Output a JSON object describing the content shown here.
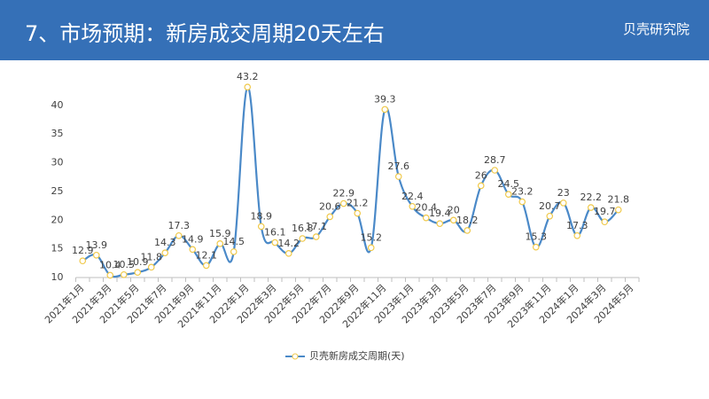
{
  "chart_data": {
    "type": "line",
    "title": "7、市场预期：新房成交周期20天左右",
    "brand": "贝壳研究院",
    "categories": [
      "2021年1月",
      null,
      "2021年3月",
      null,
      "2021年5月",
      null,
      "2021年7月",
      null,
      "2021年9月",
      null,
      "2021年11月",
      null,
      "2022年1月",
      null,
      "2022年3月",
      null,
      "2022年5月",
      null,
      "2022年7月",
      null,
      "2022年9月",
      null,
      "2022年11月",
      null,
      "2023年1月",
      null,
      "2023年3月",
      null,
      "2023年5月",
      null,
      "2023年7月",
      null,
      "2023年9月",
      null,
      "2023年11月",
      null,
      "2024年1月",
      null,
      "2024年3月",
      null,
      "2024年5月"
    ],
    "series": [
      {
        "name": "贝壳新房成交周期(天)",
        "color": "#4a89c8",
        "marker_edge": "#f0c94a",
        "values": [
          12.9,
          13.9,
          10.4,
          10.5,
          10.9,
          11.8,
          14.3,
          17.3,
          14.9,
          12.1,
          15.9,
          14.5,
          43.2,
          18.9,
          16.1,
          14.2,
          16.8,
          17.1,
          20.6,
          22.9,
          21.2,
          15.2,
          39.3,
          27.6,
          22.4,
          20.4,
          19.4,
          20,
          18.2,
          26,
          28.7,
          24.5,
          23.2,
          15.3,
          20.7,
          23,
          17.3,
          22.2,
          19.7,
          21.8,
          null
        ]
      }
    ],
    "ylim": [
      10,
      44
    ],
    "yticks": [
      10,
      15,
      20,
      25,
      30,
      35,
      40
    ],
    "grid": false,
    "legend": "bottom"
  }
}
